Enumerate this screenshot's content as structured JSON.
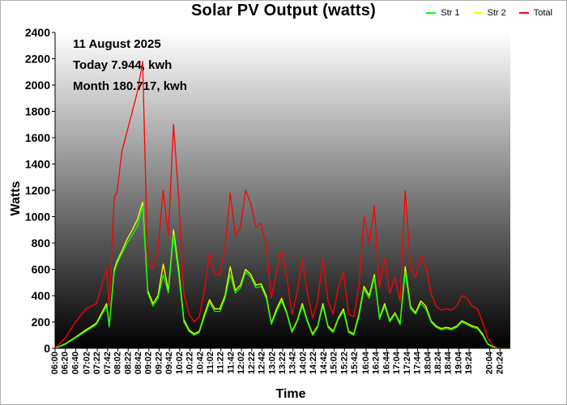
{
  "chart_data": {
    "type": "line",
    "title": "Solar PV Output (watts)",
    "xlabel": "Time",
    "ylabel": "Watts",
    "ylim": [
      0,
      2400
    ],
    "yticks": [
      0,
      200,
      400,
      600,
      800,
      1000,
      1200,
      1400,
      1600,
      1800,
      2000,
      2200,
      2400
    ],
    "xticks": [
      "06:00",
      "06:20",
      "06:40",
      "07:02",
      "07:22",
      "07:42",
      "08:02",
      "08:22",
      "08:42",
      "09:02",
      "09:22",
      "09:42",
      "10:02",
      "10:22",
      "10:42",
      "11:02",
      "11:22",
      "11:42",
      "12:02",
      "12:22",
      "12:42",
      "13:02",
      "13:22",
      "13:42",
      "14:02",
      "14:22",
      "14:42",
      "15:02",
      "15:22",
      "15:42",
      "16:04",
      "16:24",
      "16:44",
      "17:04",
      "17:24",
      "17:44",
      "18:04",
      "18:24",
      "18:44",
      "19:04",
      "19:24",
      "20:04",
      "20:24"
    ],
    "legend_position": "top-right",
    "annotations": [
      "11 August 2025",
      "Today 7.944, kwh",
      "Month 180.717, kwh"
    ],
    "series": [
      {
        "name": "Str 1",
        "color": "#00ff00",
        "x": [
          "06:00",
          "06:20",
          "06:40",
          "07:00",
          "07:20",
          "07:40",
          "07:45",
          "07:55",
          "08:00",
          "08:10",
          "08:20",
          "08:30",
          "08:40",
          "08:50",
          "09:00",
          "09:10",
          "09:20",
          "09:30",
          "09:40",
          "09:50",
          "10:00",
          "10:10",
          "10:20",
          "10:30",
          "10:40",
          "10:50",
          "11:00",
          "11:10",
          "11:20",
          "11:30",
          "11:40",
          "11:50",
          "12:00",
          "12:10",
          "12:20",
          "12:30",
          "12:40",
          "12:50",
          "13:00",
          "13:10",
          "13:20",
          "13:30",
          "13:40",
          "13:50",
          "14:00",
          "14:10",
          "14:20",
          "14:30",
          "14:40",
          "14:50",
          "15:00",
          "15:10",
          "15:20",
          "15:30",
          "15:40",
          "15:50",
          "16:00",
          "16:10",
          "16:20",
          "16:30",
          "16:40",
          "16:50",
          "17:00",
          "17:10",
          "17:20",
          "17:30",
          "17:40",
          "17:50",
          "18:00",
          "18:10",
          "18:20",
          "18:30",
          "18:40",
          "18:50",
          "19:00",
          "19:10",
          "19:20",
          "19:30",
          "19:40",
          "19:50",
          "20:00",
          "20:10",
          "20:20",
          "20:30",
          "20:40"
        ],
        "values": [
          0,
          30,
          80,
          130,
          180,
          320,
          160,
          580,
          640,
          720,
          800,
          860,
          930,
          1080,
          420,
          320,
          380,
          560,
          420,
          860,
          560,
          200,
          130,
          100,
          120,
          240,
          350,
          280,
          280,
          380,
          560,
          420,
          460,
          580,
          540,
          460,
          470,
          380,
          180,
          280,
          360,
          260,
          120,
          200,
          320,
          200,
          100,
          160,
          320,
          160,
          120,
          220,
          280,
          120,
          100,
          240,
          450,
          380,
          540,
          220,
          320,
          200,
          260,
          180,
          580,
          300,
          260,
          340,
          300,
          200,
          160,
          140,
          150,
          140,
          160,
          200,
          180,
          160,
          150,
          100,
          30,
          10,
          0,
          0,
          0
        ]
      },
      {
        "name": "Str 2",
        "color": "#ffff00",
        "x": [
          "06:00",
          "06:20",
          "06:40",
          "07:00",
          "07:20",
          "07:40",
          "07:45",
          "07:55",
          "08:00",
          "08:10",
          "08:20",
          "08:30",
          "08:40",
          "08:50",
          "09:00",
          "09:10",
          "09:20",
          "09:30",
          "09:40",
          "09:50",
          "10:00",
          "10:10",
          "10:20",
          "10:30",
          "10:40",
          "10:50",
          "11:00",
          "11:10",
          "11:20",
          "11:30",
          "11:40",
          "11:50",
          "12:00",
          "12:10",
          "12:20",
          "12:30",
          "12:40",
          "12:50",
          "13:00",
          "13:10",
          "13:20",
          "13:30",
          "13:40",
          "13:50",
          "14:00",
          "14:10",
          "14:20",
          "14:30",
          "14:40",
          "14:50",
          "15:00",
          "15:10",
          "15:20",
          "15:30",
          "15:40",
          "15:50",
          "16:00",
          "16:10",
          "16:20",
          "16:30",
          "16:40",
          "16:50",
          "17:00",
          "17:10",
          "17:20",
          "17:30",
          "17:40",
          "17:50",
          "18:00",
          "18:10",
          "18:20",
          "18:30",
          "18:40",
          "18:50",
          "19:00",
          "19:10",
          "19:20",
          "19:30",
          "19:40",
          "19:50",
          "20:00",
          "20:10",
          "20:20",
          "20:30",
          "20:40"
        ],
        "values": [
          0,
          35,
          85,
          140,
          190,
          340,
          170,
          600,
          660,
          740,
          830,
          900,
          980,
          1110,
          440,
          340,
          400,
          640,
          440,
          900,
          600,
          220,
          140,
          110,
          130,
          260,
          370,
          300,
          300,
          400,
          620,
          440,
          480,
          600,
          560,
          480,
          490,
          400,
          190,
          300,
          380,
          270,
          130,
          210,
          340,
          210,
          110,
          170,
          340,
          170,
          130,
          230,
          300,
          130,
          110,
          260,
          470,
          400,
          560,
          230,
          340,
          210,
          270,
          190,
          620,
          320,
          270,
          360,
          320,
          210,
          170,
          150,
          160,
          150,
          170,
          210,
          190,
          170,
          160,
          110,
          35,
          12,
          0,
          0,
          0
        ]
      },
      {
        "name": "Total",
        "color": "#ff0000",
        "x": [
          "06:00",
          "06:20",
          "06:40",
          "07:00",
          "07:20",
          "07:40",
          "07:45",
          "07:55",
          "08:00",
          "08:10",
          "08:20",
          "08:30",
          "08:40",
          "08:50",
          "09:00",
          "09:10",
          "09:20",
          "09:30",
          "09:40",
          "09:50",
          "10:00",
          "10:10",
          "10:20",
          "10:30",
          "10:40",
          "10:50",
          "11:00",
          "11:10",
          "11:20",
          "11:30",
          "11:40",
          "11:50",
          "12:00",
          "12:10",
          "12:20",
          "12:30",
          "12:40",
          "12:50",
          "13:00",
          "13:10",
          "13:20",
          "13:30",
          "13:40",
          "13:50",
          "14:00",
          "14:10",
          "14:20",
          "14:30",
          "14:40",
          "14:50",
          "15:00",
          "15:10",
          "15:20",
          "15:30",
          "15:40",
          "15:50",
          "16:00",
          "16:10",
          "16:20",
          "16:30",
          "16:40",
          "16:50",
          "17:00",
          "17:10",
          "17:20",
          "17:30",
          "17:40",
          "17:50",
          "18:00",
          "18:10",
          "18:20",
          "18:30",
          "18:40",
          "18:50",
          "19:00",
          "19:10",
          "19:20",
          "19:30",
          "19:40",
          "19:50",
          "20:00",
          "20:10",
          "20:20",
          "20:30",
          "20:40"
        ],
        "values": [
          0,
          80,
          200,
          300,
          340,
          600,
          320,
          1150,
          1180,
          1500,
          1650,
          1800,
          1950,
          2180,
          640,
          600,
          760,
          1200,
          860,
          1700,
          1150,
          420,
          260,
          200,
          240,
          440,
          720,
          560,
          560,
          760,
          1180,
          860,
          920,
          1200,
          1100,
          920,
          950,
          780,
          380,
          580,
          740,
          540,
          260,
          420,
          680,
          420,
          230,
          360,
          680,
          360,
          260,
          460,
          580,
          260,
          240,
          480,
          1000,
          800,
          1080,
          460,
          680,
          420,
          540,
          360,
          1200,
          620,
          540,
          700,
          620,
          420,
          320,
          290,
          300,
          290,
          320,
          400,
          380,
          320,
          300,
          200,
          80,
          20,
          0,
          0,
          0
        ]
      }
    ]
  }
}
